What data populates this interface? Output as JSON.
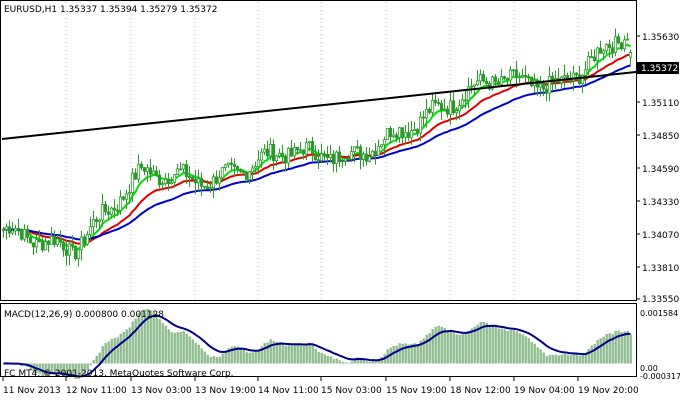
{
  "main_chart": {
    "header": "EURUSD,H1  1.35337 1.35394 1.35279 1.35372",
    "price_ticks": [
      "1.35630",
      "1.35110",
      "1.34850",
      "1.34590",
      "1.34330",
      "1.34070",
      "1.33810",
      "1.33550"
    ],
    "current_price_badge": "1.35372",
    "colors": {
      "frame": "#000000",
      "candle": "#2a9a2a",
      "grid": "#c0c0c0",
      "ma_fast": "#00e000",
      "ma_mid": "#e00000",
      "ma_slow": "#0000cc",
      "trendline": "#000000",
      "badge_bg": "#000000",
      "badge_text": "#ffffff"
    }
  },
  "macd_panel": {
    "header": "MACD(12,26,9) 0.000800 0.001128",
    "ticks": [
      "0.001584",
      "0.00",
      "-0.000317"
    ],
    "copyright": "FC MT4, © 2001-2013, MetaQuotes Software Corp.",
    "colors": {
      "histogram": "#8fbc8f",
      "signal": "#00008b"
    }
  },
  "time_axis": {
    "labels": [
      "11 Nov 2013",
      "12 Nov 11:00",
      "13 Nov 03:00",
      "13 Nov 19:00",
      "14 Nov 11:00",
      "15 Nov 03:00",
      "15 Nov 19:00",
      "18 Nov 12:00",
      "19 Nov 04:00",
      "19 Nov 20:00"
    ]
  },
  "chart_data": {
    "type": "candlestick",
    "symbol": "EURUSD",
    "timeframe": "H1",
    "last_ohlc": {
      "open": 1.35337,
      "high": 1.35394,
      "low": 1.35279,
      "close": 1.35372
    },
    "ylim": [
      1.3355,
      1.3575
    ],
    "approx_close_trajectory": [
      {
        "time": "11 Nov 2013",
        "close": 1.3407
      },
      {
        "time": "12 Nov 11:00",
        "close": 1.3392
      },
      {
        "time": "13 Nov 03:00",
        "close": 1.345
      },
      {
        "time": "13 Nov 19:00",
        "close": 1.3442
      },
      {
        "time": "14 Nov 11:00",
        "close": 1.3465
      },
      {
        "time": "15 Nov 03:00",
        "close": 1.346
      },
      {
        "time": "15 Nov 19:00",
        "close": 1.3488
      },
      {
        "time": "18 Nov 12:00",
        "close": 1.3518
      },
      {
        "time": "19 Nov 04:00",
        "close": 1.3512
      },
      {
        "time": "19 Nov 20:00",
        "close": 1.3555
      }
    ],
    "macd": {
      "main": 0.0008,
      "signal": 0.001128,
      "ylim": [
        -0.000317,
        0.001584
      ]
    }
  }
}
